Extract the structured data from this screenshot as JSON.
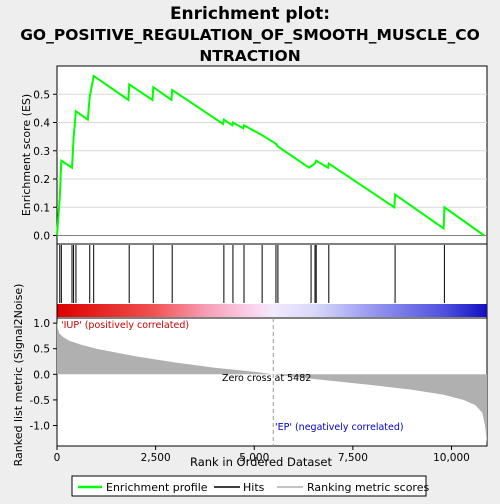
{
  "chart_data": {
    "type": "line",
    "title": "Enrichment plot:\nGO_POSITIVE_REGULATION_OF_SMOOTH_MUSCLE_CO\nNTRACTION",
    "title_lines": [
      "Enrichment plot:",
      "GO_POSITIVE_REGULATION_OF_SMOOTH_MUSCLE_CO",
      "NTRACTION"
    ],
    "top_panel": {
      "ylabel": "Enrichment score (ES)",
      "ylim": [
        -0.03,
        0.6
      ],
      "yticks": [
        0.0,
        0.1,
        0.2,
        0.3,
        0.4,
        0.5
      ],
      "ytick_labels": [
        "0.0",
        "0.1",
        "0.2",
        "0.3",
        "0.4",
        "0.5"
      ],
      "grid": true,
      "series": [
        {
          "name": "Enrichment profile",
          "color": "#00ff00",
          "x": [
            0,
            70,
            110,
            380,
            420,
            480,
            780,
            830,
            930,
            1810,
            1830,
            2420,
            2440,
            2900,
            2920,
            4210,
            4230,
            4440,
            4460,
            4720,
            4740,
            5200,
            5550,
            5600,
            6390,
            6440,
            6540,
            6570,
            6870,
            6890,
            8550,
            8570,
            9800,
            9820,
            10830
          ],
          "y": [
            0.0,
            0.135,
            0.265,
            0.24,
            0.345,
            0.44,
            0.41,
            0.49,
            0.565,
            0.48,
            0.535,
            0.48,
            0.525,
            0.48,
            0.515,
            0.395,
            0.41,
            0.39,
            0.4,
            0.38,
            0.39,
            0.355,
            0.325,
            0.315,
            0.24,
            0.245,
            0.255,
            0.265,
            0.24,
            0.255,
            0.1,
            0.145,
            0.025,
            0.1,
            0.0
          ]
        }
      ]
    },
    "hits": {
      "name": "Hits",
      "x": [
        70,
        110,
        380,
        420,
        480,
        830,
        930,
        1830,
        2440,
        2920,
        4230,
        4460,
        4740,
        5200,
        5550,
        5600,
        6440,
        6540,
        6570,
        6890,
        8570,
        9820
      ]
    },
    "rank_panel": {
      "ylabel": "Ranked list metric (Signal2Noise)",
      "xlabel": "Rank in Ordered Dataset",
      "ylim": [
        -1.4,
        1.1
      ],
      "yticks": [
        1.0,
        0.5,
        0.0,
        -0.5,
        -1.0
      ],
      "ytick_labels": [
        "1.0",
        "0.5",
        "0.0",
        "-0.5",
        "-1.0"
      ],
      "xlim": [
        0,
        10900
      ],
      "xticks": [
        0,
        2500,
        5000,
        7500,
        10000
      ],
      "xtick_labels": [
        "0",
        "2,500",
        "5,000",
        "7,500",
        "10,000"
      ],
      "zero_cross": 5482,
      "zero_cross_label": "Zero cross at 5482",
      "pos_label": "'IUP' (positively correlated)",
      "neg_label": "'EP' (negatively correlated)",
      "series": {
        "name": "Ranking metric scores",
        "color": "#b0b0b0",
        "x": [
          0,
          20,
          60,
          150,
          300,
          600,
          1000,
          2000,
          3000,
          4000,
          5000,
          5482,
          6000,
          7000,
          8000,
          9000,
          9800,
          10300,
          10600,
          10780,
          10850,
          10900
        ],
        "y": [
          1.05,
          0.9,
          0.8,
          0.73,
          0.66,
          0.58,
          0.5,
          0.35,
          0.23,
          0.13,
          0.05,
          0.0,
          -0.05,
          -0.13,
          -0.21,
          -0.3,
          -0.4,
          -0.5,
          -0.6,
          -0.75,
          -1.0,
          -1.35
        ]
      }
    },
    "legend": {
      "placement": "bottom",
      "items": [
        {
          "label": "Enrichment profile",
          "color": "#00ff00",
          "kind": "line"
        },
        {
          "label": "Hits",
          "color": "#000000",
          "kind": "line"
        },
        {
          "label": "Ranking metric scores",
          "color": "#b0b0b0",
          "kind": "line"
        }
      ]
    }
  }
}
